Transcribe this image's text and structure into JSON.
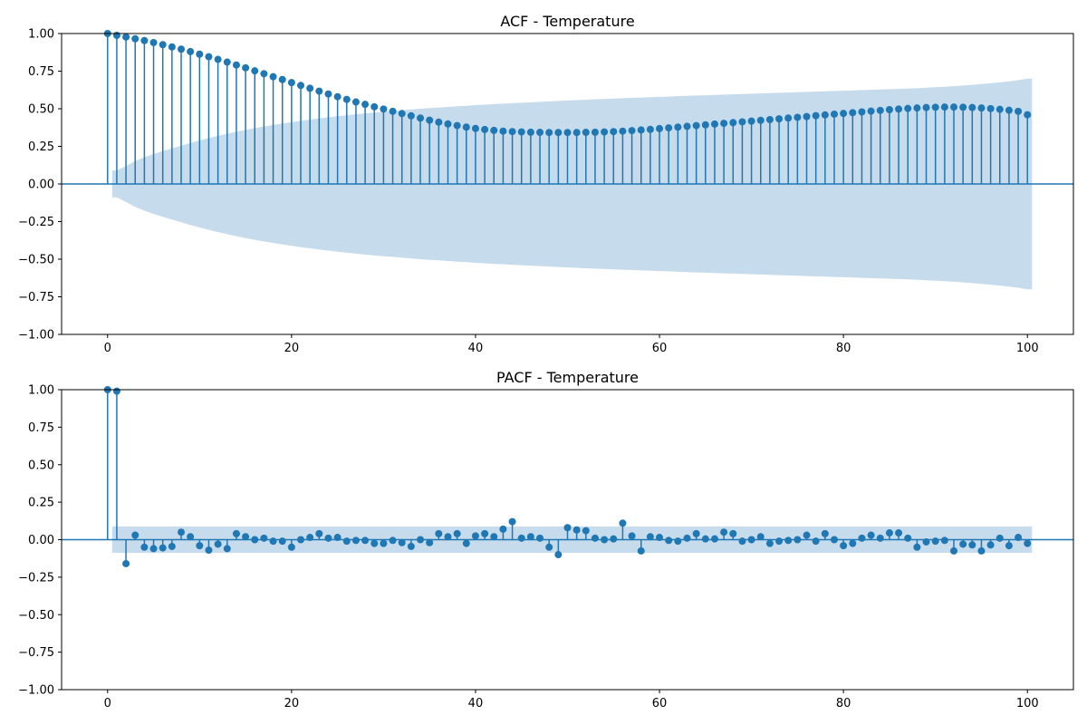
{
  "chart_data": [
    {
      "type": "stem",
      "title": "ACF - Temperature",
      "xlabel": "",
      "ylabel": "",
      "xlim": [
        -5,
        105
      ],
      "ylim": [
        -1.0,
        1.0
      ],
      "xticks": [
        0,
        20,
        40,
        60,
        80,
        100
      ],
      "xtick_labels": [
        "0",
        "20",
        "40",
        "60",
        "80",
        "100"
      ],
      "yticks": [
        -1.0,
        -0.75,
        -0.5,
        -0.25,
        0.0,
        0.25,
        0.5,
        0.75,
        1.0
      ],
      "ytick_labels": [
        "−1.00",
        "−0.75",
        "−0.50",
        "−0.25",
        "0.00",
        "0.25",
        "0.50",
        "0.75",
        "1.00"
      ],
      "grid": false,
      "color": "#1f77b4",
      "band_color": "#c6dbec",
      "lags": [
        0,
        1,
        2,
        3,
        4,
        5,
        6,
        7,
        8,
        9,
        10,
        11,
        12,
        13,
        14,
        15,
        16,
        17,
        18,
        19,
        20,
        21,
        22,
        23,
        24,
        25,
        26,
        27,
        28,
        29,
        30,
        31,
        32,
        33,
        34,
        35,
        36,
        37,
        38,
        39,
        40,
        41,
        42,
        43,
        44,
        45,
        46,
        47,
        48,
        49,
        50,
        51,
        52,
        53,
        54,
        55,
        56,
        57,
        58,
        59,
        60,
        61,
        62,
        63,
        64,
        65,
        66,
        67,
        68,
        69,
        70,
        71,
        72,
        73,
        74,
        75,
        76,
        77,
        78,
        79,
        80,
        81,
        82,
        83,
        84,
        85,
        86,
        87,
        88,
        89,
        90,
        91,
        92,
        93,
        94,
        95,
        96,
        97,
        98,
        99,
        100
      ],
      "values": [
        1.0,
        0.988,
        0.977,
        0.965,
        0.953,
        0.94,
        0.926,
        0.911,
        0.896,
        0.88,
        0.863,
        0.846,
        0.828,
        0.81,
        0.791,
        0.772,
        0.752,
        0.733,
        0.713,
        0.694,
        0.674,
        0.655,
        0.636,
        0.617,
        0.598,
        0.58,
        0.562,
        0.545,
        0.529,
        0.513,
        0.498,
        0.483,
        0.468,
        0.453,
        0.438,
        0.424,
        0.411,
        0.399,
        0.388,
        0.378,
        0.369,
        0.362,
        0.356,
        0.351,
        0.348,
        0.346,
        0.344,
        0.343,
        0.342,
        0.342,
        0.342,
        0.342,
        0.343,
        0.344,
        0.346,
        0.348,
        0.351,
        0.355,
        0.359,
        0.363,
        0.368,
        0.373,
        0.378,
        0.383,
        0.388,
        0.393,
        0.398,
        0.403,
        0.408,
        0.413,
        0.418,
        0.423,
        0.428,
        0.433,
        0.438,
        0.443,
        0.448,
        0.454,
        0.459,
        0.464,
        0.469,
        0.474,
        0.479,
        0.484,
        0.489,
        0.494,
        0.498,
        0.502,
        0.505,
        0.508,
        0.51,
        0.511,
        0.511,
        0.51,
        0.508,
        0.505,
        0.501,
        0.496,
        0.49,
        0.483,
        0.46
      ],
      "confint_halfwidth": [
        0.09,
        0.09,
        0.12,
        0.152,
        0.178,
        0.199,
        0.218,
        0.237,
        0.255,
        0.272,
        0.289,
        0.305,
        0.32,
        0.334,
        0.347,
        0.36,
        0.371,
        0.382,
        0.392,
        0.402,
        0.411,
        0.42,
        0.428,
        0.436,
        0.443,
        0.45,
        0.457,
        0.463,
        0.469,
        0.475,
        0.48,
        0.485,
        0.49,
        0.495,
        0.5,
        0.504,
        0.508,
        0.512,
        0.516,
        0.52,
        0.524,
        0.527,
        0.531,
        0.534,
        0.537,
        0.54,
        0.543,
        0.546,
        0.549,
        0.552,
        0.555,
        0.557,
        0.56,
        0.563,
        0.565,
        0.568,
        0.57,
        0.572,
        0.575,
        0.577,
        0.579,
        0.581,
        0.584,
        0.586,
        0.588,
        0.59,
        0.592,
        0.594,
        0.596,
        0.598,
        0.6,
        0.602,
        0.604,
        0.606,
        0.608,
        0.61,
        0.612,
        0.614,
        0.616,
        0.618,
        0.62,
        0.622,
        0.624,
        0.626,
        0.628,
        0.63,
        0.632,
        0.634,
        0.637,
        0.64,
        0.643,
        0.646,
        0.65,
        0.654,
        0.659,
        0.664,
        0.669,
        0.675,
        0.682,
        0.69,
        0.7
      ]
    },
    {
      "type": "stem",
      "title": "PACF - Temperature",
      "xlabel": "",
      "ylabel": "",
      "xlim": [
        -5,
        105
      ],
      "ylim": [
        -1.0,
        1.0
      ],
      "xticks": [
        0,
        20,
        40,
        60,
        80,
        100
      ],
      "xtick_labels": [
        "0",
        "20",
        "40",
        "60",
        "80",
        "100"
      ],
      "yticks": [
        -1.0,
        -0.75,
        -0.5,
        -0.25,
        0.0,
        0.25,
        0.5,
        0.75,
        1.0
      ],
      "ytick_labels": [
        "−1.00",
        "−0.75",
        "−0.50",
        "−0.25",
        "0.00",
        "0.25",
        "0.50",
        "0.75",
        "1.00"
      ],
      "grid": false,
      "color": "#1f77b4",
      "band_color": "#c6dbec",
      "confint_halfwidth_const": 0.088,
      "lags": [
        0,
        1,
        2,
        3,
        4,
        5,
        6,
        7,
        8,
        9,
        10,
        11,
        12,
        13,
        14,
        15,
        16,
        17,
        18,
        19,
        20,
        21,
        22,
        23,
        24,
        25,
        26,
        27,
        28,
        29,
        30,
        31,
        32,
        33,
        34,
        35,
        36,
        37,
        38,
        39,
        40,
        41,
        42,
        43,
        44,
        45,
        46,
        47,
        48,
        49,
        50,
        51,
        52,
        53,
        54,
        55,
        56,
        57,
        58,
        59,
        60,
        61,
        62,
        63,
        64,
        65,
        66,
        67,
        68,
        69,
        70,
        71,
        72,
        73,
        74,
        75,
        76,
        77,
        78,
        79,
        80,
        81,
        82,
        83,
        84,
        85,
        86,
        87,
        88,
        89,
        90,
        91,
        92,
        93,
        94,
        95,
        96,
        97,
        98,
        99,
        100
      ],
      "values": [
        1.0,
        0.99,
        -0.16,
        0.03,
        -0.05,
        -0.06,
        -0.055,
        -0.045,
        0.05,
        0.02,
        -0.04,
        -0.07,
        -0.03,
        -0.06,
        0.04,
        0.02,
        0.0,
        0.01,
        -0.01,
        -0.01,
        -0.05,
        0.0,
        0.015,
        0.04,
        0.01,
        0.015,
        -0.01,
        -0.005,
        -0.005,
        -0.025,
        -0.025,
        -0.005,
        -0.02,
        -0.045,
        0.0,
        -0.02,
        0.04,
        0.02,
        0.04,
        -0.025,
        0.025,
        0.04,
        0.02,
        0.07,
        0.12,
        0.01,
        0.02,
        0.01,
        -0.05,
        -0.1,
        0.08,
        0.065,
        0.06,
        0.01,
        0.0,
        0.005,
        0.11,
        0.025,
        -0.075,
        0.02,
        0.015,
        -0.005,
        -0.01,
        0.01,
        0.04,
        0.005,
        0.005,
        0.05,
        0.04,
        -0.01,
        0.0,
        0.02,
        -0.025,
        -0.01,
        -0.005,
        0.0,
        0.03,
        -0.01,
        0.04,
        0.0,
        -0.04,
        -0.025,
        0.01,
        0.03,
        0.01,
        0.045,
        0.045,
        0.01,
        -0.05,
        -0.015,
        -0.01,
        -0.005,
        -0.075,
        -0.03,
        -0.035,
        -0.075,
        -0.035,
        0.01,
        -0.04,
        0.015,
        -0.025
      ]
    }
  ]
}
